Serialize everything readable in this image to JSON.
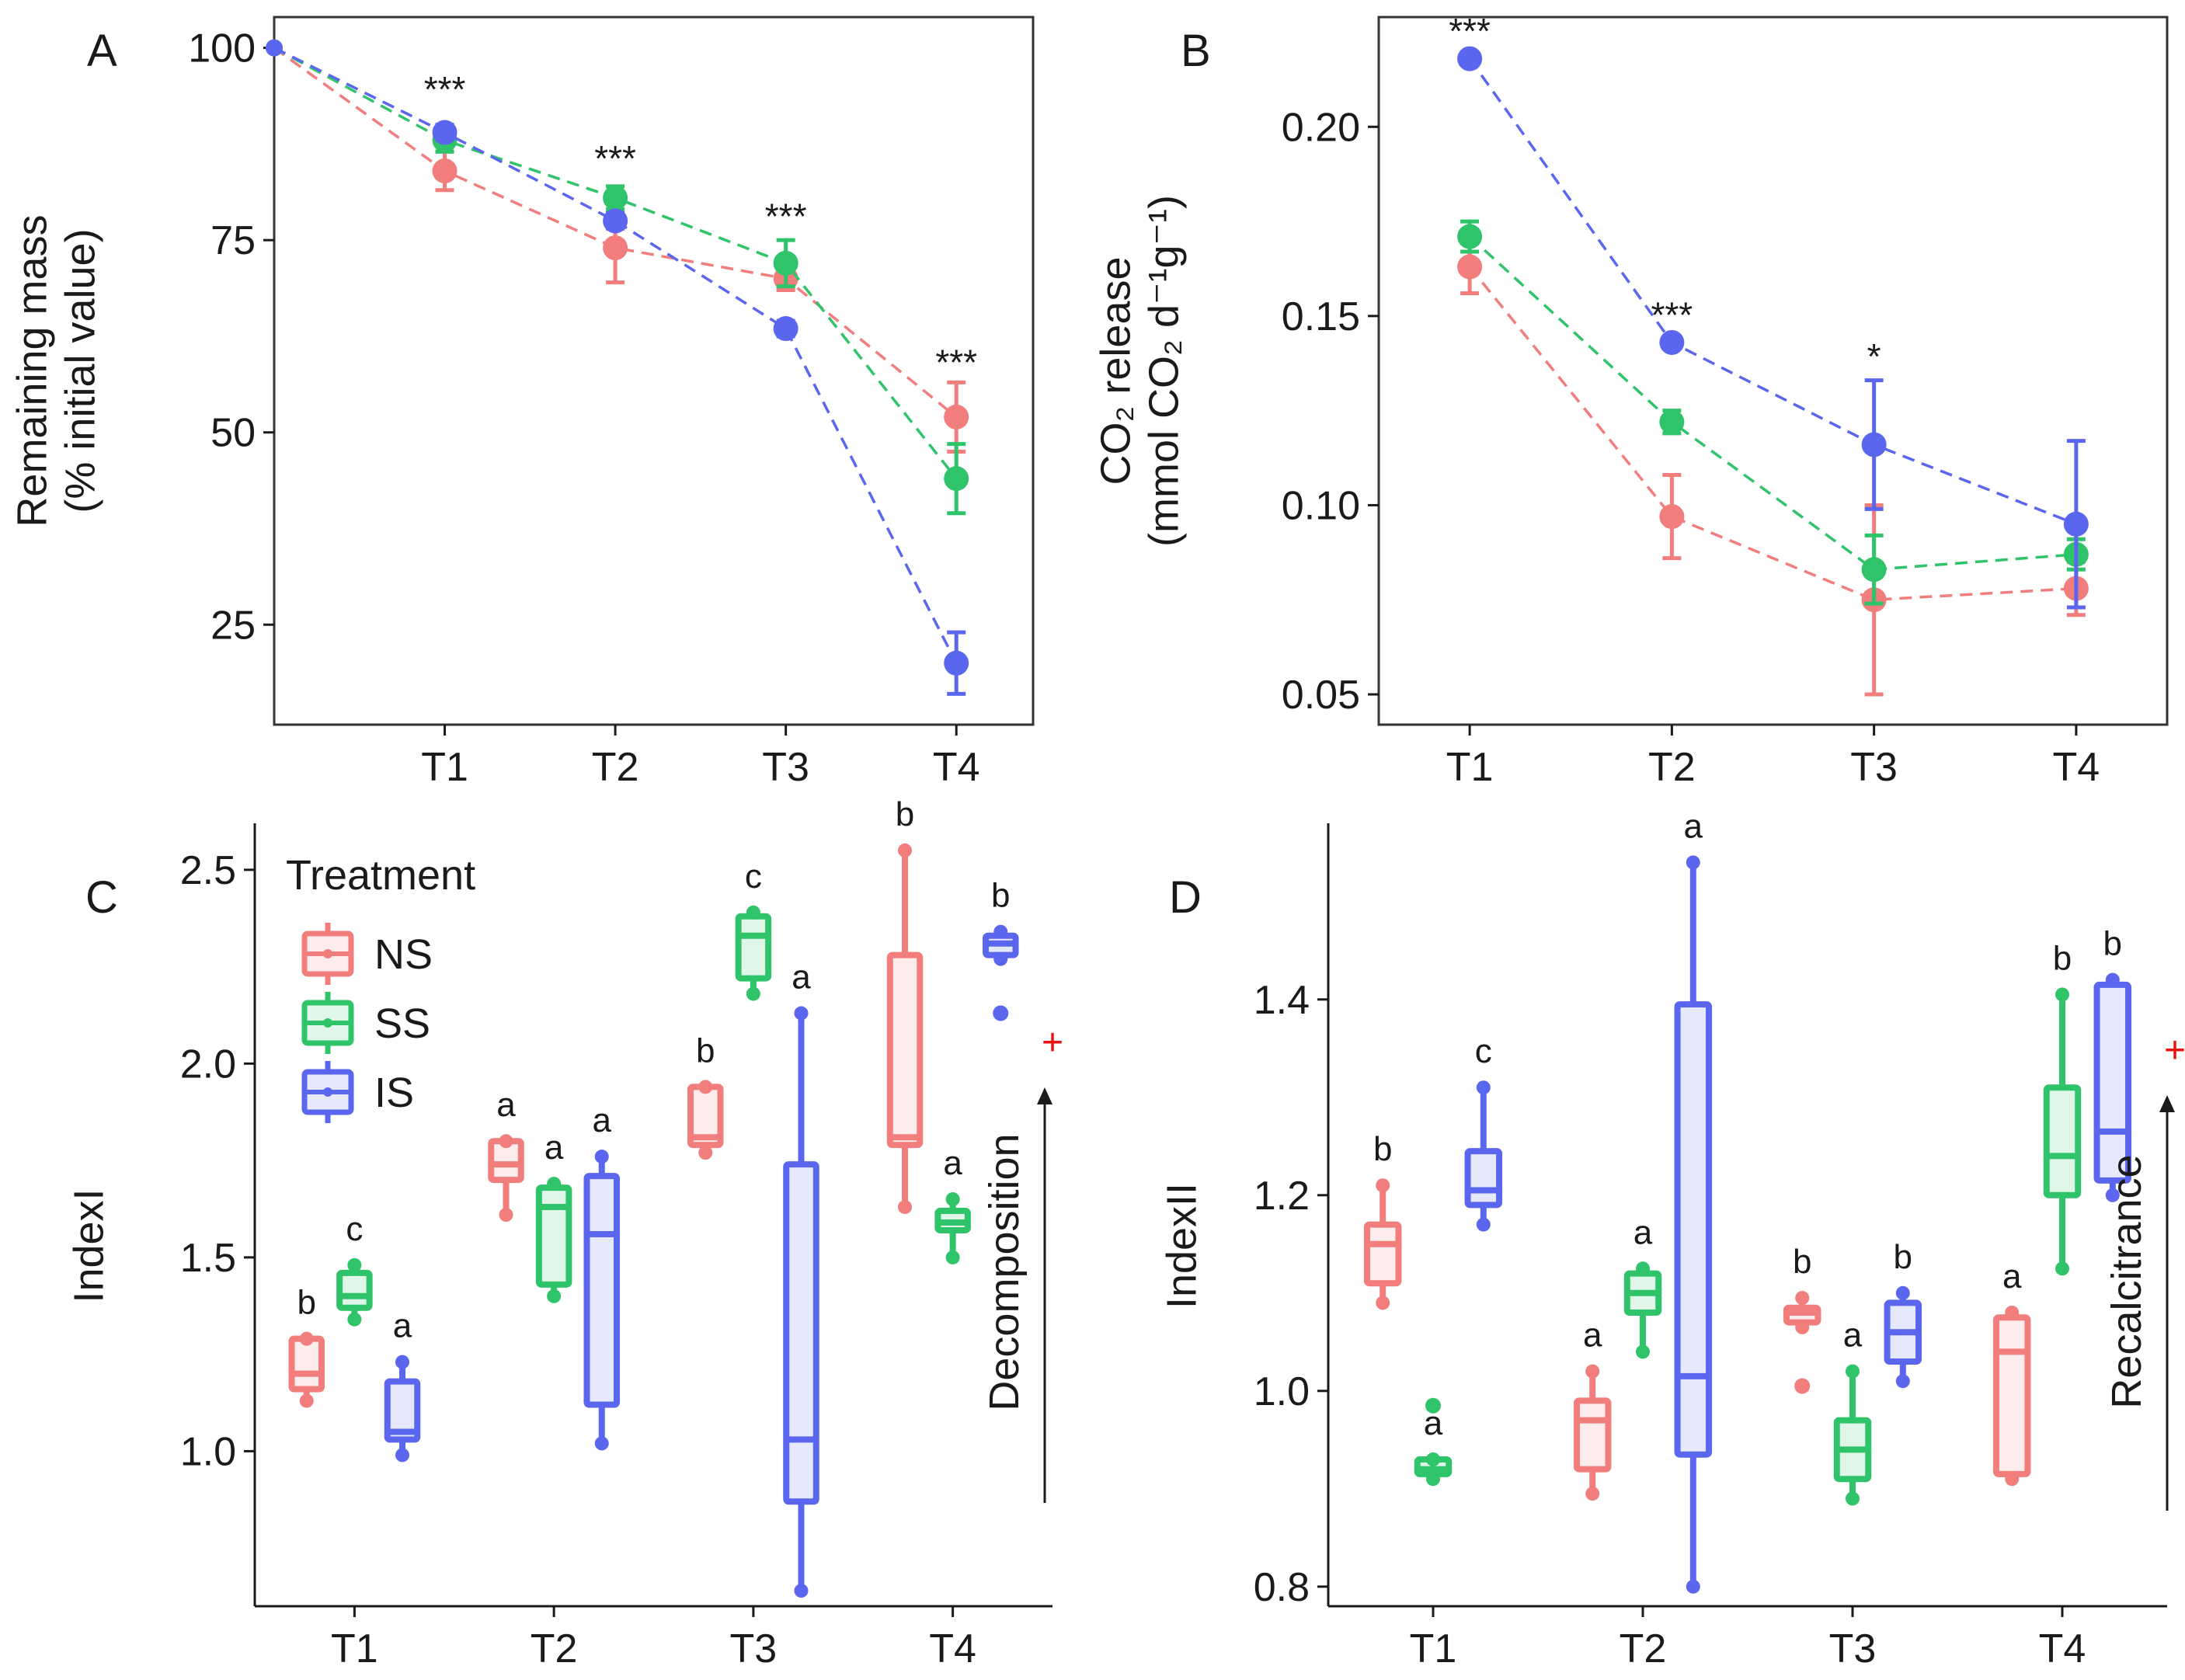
{
  "colors": {
    "NS": "#F27D7D",
    "SS": "#2FC46A",
    "IS": "#5B66EE",
    "plus": "#EE1111"
  },
  "chart_data": [
    {
      "panel": "A",
      "type": "line",
      "ylabel_lines": [
        "Remaining mass",
        "(% initial value)"
      ],
      "xlim": [
        0,
        4.45
      ],
      "ylim": [
        12,
        104
      ],
      "yticks": [
        25,
        50,
        75,
        100
      ],
      "categories": [
        "T1",
        "T2",
        "T3",
        "T4"
      ],
      "x": [
        1,
        2,
        3,
        4
      ],
      "start_value": 100,
      "series": [
        {
          "name": "NS",
          "values": [
            84,
            74,
            70,
            52
          ],
          "err": [
            2.5,
            4.5,
            1.5,
            4.5
          ]
        },
        {
          "name": "SS",
          "values": [
            88,
            80.5,
            72,
            44
          ],
          "err": [
            1.5,
            1.5,
            3,
            4.5
          ]
        },
        {
          "name": "IS",
          "values": [
            89,
            77.5,
            63.5,
            20
          ],
          "err": [
            1,
            1,
            1,
            4
          ]
        }
      ],
      "significance": [
        {
          "x": 1,
          "label": "***",
          "y": 93
        },
        {
          "x": 2,
          "label": "***",
          "y": 84
        },
        {
          "x": 3,
          "label": "***",
          "y": 76.5
        },
        {
          "x": 4,
          "label": "***",
          "y": 57.5
        }
      ]
    },
    {
      "panel": "B",
      "type": "line",
      "ylabel_lines": [
        "CO₂ release",
        "(mmol CO₂ d⁻¹g⁻¹)"
      ],
      "xlim": [
        0.55,
        4.45
      ],
      "ylim": [
        0.042,
        0.229
      ],
      "yticks": [
        0.05,
        0.1,
        0.15,
        0.2
      ],
      "ytick_labels": [
        "0.05",
        "0.10",
        "0.15",
        "0.20"
      ],
      "categories": [
        "T1",
        "T2",
        "T3",
        "T4"
      ],
      "x": [
        1,
        2,
        3,
        4
      ],
      "series": [
        {
          "name": "NS",
          "values": [
            0.163,
            0.097,
            0.075,
            0.078
          ],
          "err": [
            0.007,
            0.011,
            0.025,
            0.007
          ]
        },
        {
          "name": "SS",
          "values": [
            0.171,
            0.122,
            0.083,
            0.087
          ],
          "err": [
            0.004,
            0.003,
            0.009,
            0.004
          ]
        },
        {
          "name": "IS",
          "values": [
            0.218,
            0.143,
            0.116,
            0.095
          ],
          "err": [
            0.001,
            0.001,
            0.017,
            0.022
          ]
        }
      ],
      "significance": [
        {
          "x": 1,
          "label": "***",
          "y": 0.222
        },
        {
          "x": 2,
          "label": "***",
          "y": 0.147
        },
        {
          "x": 3,
          "label": "*",
          "y": 0.136
        }
      ]
    },
    {
      "panel": "C",
      "type": "box",
      "ylabel": "IndexI",
      "xlim": [
        0.5,
        4.5
      ],
      "ylim": [
        0.6,
        2.62
      ],
      "yticks": [
        1.0,
        1.5,
        2.0,
        2.5
      ],
      "ytick_labels": [
        "1.0",
        "1.5",
        "2.0",
        "2.5"
      ],
      "categories": [
        "T1",
        "T2",
        "T3",
        "T4"
      ],
      "annotation": "Decomposition",
      "plus": "+",
      "legend": {
        "title": "Treatment",
        "items": [
          "NS",
          "SS",
          "IS"
        ]
      },
      "groups": [
        {
          "cat": "T1",
          "series": "NS",
          "min": 1.13,
          "q1": 1.16,
          "med": 1.2,
          "q3": 1.29,
          "max": 1.29,
          "outliers": [],
          "letter": "b"
        },
        {
          "cat": "T1",
          "series": "SS",
          "min": 1.34,
          "q1": 1.37,
          "med": 1.4,
          "q3": 1.46,
          "max": 1.48,
          "outliers": [],
          "letter": "c"
        },
        {
          "cat": "T1",
          "series": "IS",
          "min": 0.99,
          "q1": 1.03,
          "med": 1.05,
          "q3": 1.18,
          "max": 1.23,
          "outliers": [],
          "letter": "a"
        },
        {
          "cat": "T2",
          "series": "NS",
          "min": 1.61,
          "q1": 1.7,
          "med": 1.74,
          "q3": 1.8,
          "max": 1.8,
          "outliers": [],
          "letter": "a"
        },
        {
          "cat": "T2",
          "series": "SS",
          "min": 1.4,
          "q1": 1.43,
          "med": 1.63,
          "q3": 1.68,
          "max": 1.69,
          "outliers": [],
          "letter": "a"
        },
        {
          "cat": "T2",
          "series": "IS",
          "min": 1.02,
          "q1": 1.12,
          "med": 1.56,
          "q3": 1.71,
          "max": 1.76,
          "outliers": [],
          "letter": "a"
        },
        {
          "cat": "T3",
          "series": "NS",
          "min": 1.77,
          "q1": 1.79,
          "med": 1.81,
          "q3": 1.94,
          "max": 1.94,
          "outliers": [],
          "letter": "b"
        },
        {
          "cat": "T3",
          "series": "SS",
          "min": 2.18,
          "q1": 2.22,
          "med": 2.33,
          "q3": 2.38,
          "max": 2.39,
          "outliers": [],
          "letter": "c"
        },
        {
          "cat": "T3",
          "series": "IS",
          "min": 0.64,
          "q1": 0.87,
          "med": 1.03,
          "q3": 1.74,
          "max": 2.13,
          "outliers": [],
          "letter": "a"
        },
        {
          "cat": "T4",
          "series": "NS",
          "min": 1.63,
          "q1": 1.79,
          "med": 1.81,
          "q3": 2.28,
          "max": 2.55,
          "outliers": [],
          "letter": "b"
        },
        {
          "cat": "T4",
          "series": "SS",
          "min": 1.5,
          "q1": 1.57,
          "med": 1.59,
          "q3": 1.62,
          "max": 1.65,
          "outliers": [],
          "letter": "a"
        },
        {
          "cat": "T4",
          "series": "IS",
          "min": 2.27,
          "q1": 2.28,
          "med": 2.31,
          "q3": 2.33,
          "max": 2.34,
          "outliers": [
            2.13
          ],
          "letter": "b"
        }
      ]
    },
    {
      "panel": "D",
      "type": "box",
      "ylabel": "IndexII",
      "xlim": [
        0.5,
        4.5
      ],
      "ylim": [
        0.78,
        1.58
      ],
      "yticks": [
        0.8,
        1.0,
        1.2,
        1.4
      ],
      "ytick_labels": [
        "0.8",
        "1.0",
        "1.2",
        "1.4"
      ],
      "categories": [
        "T1",
        "T2",
        "T3",
        "T4"
      ],
      "annotation": "Recalcitrance",
      "plus": "+",
      "groups": [
        {
          "cat": "T1",
          "series": "NS",
          "min": 1.09,
          "q1": 1.11,
          "med": 1.15,
          "q3": 1.17,
          "max": 1.21,
          "outliers": [],
          "letter": "b"
        },
        {
          "cat": "T1",
          "series": "SS",
          "min": 0.91,
          "q1": 0.915,
          "med": 0.92,
          "q3": 0.93,
          "max": 0.93,
          "outliers": [
            0.985
          ],
          "letter": "a"
        },
        {
          "cat": "T1",
          "series": "IS",
          "min": 1.17,
          "q1": 1.19,
          "med": 1.205,
          "q3": 1.245,
          "max": 1.31,
          "outliers": [],
          "letter": "c"
        },
        {
          "cat": "T2",
          "series": "NS",
          "min": 0.895,
          "q1": 0.92,
          "med": 0.97,
          "q3": 0.99,
          "max": 1.02,
          "outliers": [],
          "letter": "a"
        },
        {
          "cat": "T2",
          "series": "SS",
          "min": 1.04,
          "q1": 1.08,
          "med": 1.1,
          "q3": 1.12,
          "max": 1.125,
          "outliers": [],
          "letter": "a"
        },
        {
          "cat": "T2",
          "series": "IS",
          "min": 0.8,
          "q1": 0.935,
          "med": 1.015,
          "q3": 1.395,
          "max": 1.54,
          "outliers": [],
          "letter": "a"
        },
        {
          "cat": "T3",
          "series": "NS",
          "min": 1.065,
          "q1": 1.07,
          "med": 1.08,
          "q3": 1.085,
          "max": 1.095,
          "outliers": [
            1.005
          ],
          "letter": "b"
        },
        {
          "cat": "T3",
          "series": "SS",
          "min": 0.89,
          "q1": 0.91,
          "med": 0.94,
          "q3": 0.97,
          "max": 1.02,
          "outliers": [],
          "letter": "a"
        },
        {
          "cat": "T3",
          "series": "IS",
          "min": 1.01,
          "q1": 1.03,
          "med": 1.06,
          "q3": 1.09,
          "max": 1.1,
          "outliers": [],
          "letter": "b"
        },
        {
          "cat": "T4",
          "series": "NS",
          "min": 0.91,
          "q1": 0.915,
          "med": 1.04,
          "q3": 1.075,
          "max": 1.08,
          "outliers": [],
          "letter": "a"
        },
        {
          "cat": "T4",
          "series": "SS",
          "min": 1.125,
          "q1": 1.2,
          "med": 1.24,
          "q3": 1.31,
          "max": 1.405,
          "outliers": [],
          "letter": "b"
        },
        {
          "cat": "T4",
          "series": "IS",
          "min": 1.2,
          "q1": 1.215,
          "med": 1.265,
          "q3": 1.415,
          "max": 1.42,
          "outliers": [],
          "letter": "b"
        }
      ]
    }
  ]
}
